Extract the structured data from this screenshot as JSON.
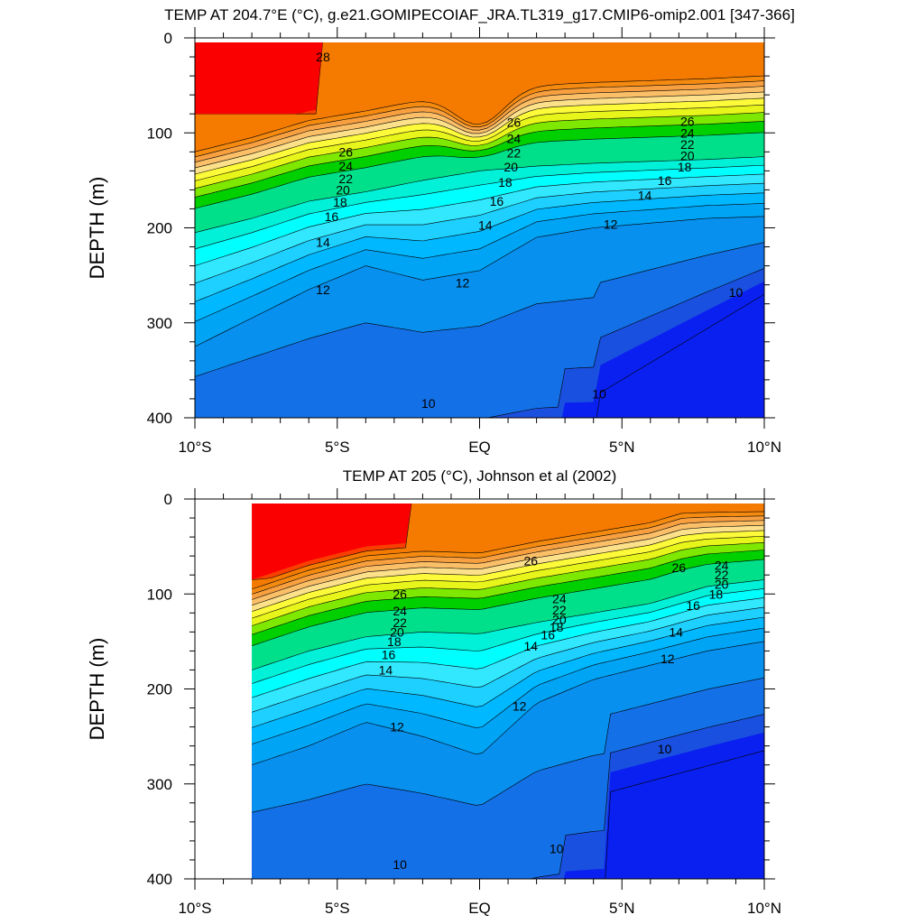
{
  "chart_data": [
    {
      "type": "heatmap",
      "title": "TEMP AT 204.7°E (°C), g.e21.GOMIPECOIAF_JRA.TL319_g17.CMIP6-omip2.001 [347-366]",
      "xlabel": "",
      "ylabel": "DEPTH (m)",
      "xlim": [
        -10,
        10
      ],
      "ylim": [
        400,
        0
      ],
      "x_ticks": [
        -10,
        -5,
        0,
        5,
        10
      ],
      "x_tick_labels": [
        "10°S",
        "5°S",
        "EQ",
        "5°N",
        "10°N"
      ],
      "y_ticks": [
        0,
        100,
        200,
        300,
        400
      ],
      "y_tick_labels": [
        "0",
        "100",
        "200",
        "300",
        "400"
      ],
      "x": [
        -10,
        -8,
        -6,
        -4,
        -2,
        0,
        2,
        4,
        6,
        8,
        10
      ],
      "d18_isotherm": [
        205,
        190,
        172,
        162,
        150,
        140,
        135,
        132,
        130,
        128,
        125
      ],
      "d12_isotherm": [
        325,
        295,
        265,
        240,
        255,
        245,
        210,
        200,
        195,
        190,
        188
      ],
      "contour_labels": [
        {
          "text": "28",
          "x": -5.5,
          "y": 20
        },
        {
          "text": "26",
          "x": -4.7,
          "y": 120
        },
        {
          "text": "24",
          "x": -4.7,
          "y": 135
        },
        {
          "text": "22",
          "x": -4.7,
          "y": 148
        },
        {
          "text": "20",
          "x": -4.8,
          "y": 160
        },
        {
          "text": "18",
          "x": -4.9,
          "y": 173
        },
        {
          "text": "16",
          "x": -5.2,
          "y": 188
        },
        {
          "text": "14",
          "x": -5.5,
          "y": 215
        },
        {
          "text": "12",
          "x": -5.5,
          "y": 265
        },
        {
          "text": "12",
          "x": -0.6,
          "y": 258
        },
        {
          "text": "14",
          "x": 0.2,
          "y": 197
        },
        {
          "text": "16",
          "x": 0.6,
          "y": 172
        },
        {
          "text": "18",
          "x": 0.9,
          "y": 152
        },
        {
          "text": "20",
          "x": 1.1,
          "y": 136
        },
        {
          "text": "22",
          "x": 1.2,
          "y": 121
        },
        {
          "text": "24",
          "x": 1.2,
          "y": 106
        },
        {
          "text": "26",
          "x": 1.2,
          "y": 89
        },
        {
          "text": "12",
          "x": 4.6,
          "y": 196
        },
        {
          "text": "14",
          "x": 5.8,
          "y": 166
        },
        {
          "text": "16",
          "x": 6.5,
          "y": 150
        },
        {
          "text": "18",
          "x": 7.2,
          "y": 136
        },
        {
          "text": "20",
          "x": 7.3,
          "y": 124
        },
        {
          "text": "22",
          "x": 7.3,
          "y": 112
        },
        {
          "text": "24",
          "x": 7.3,
          "y": 100
        },
        {
          "text": "26",
          "x": 7.3,
          "y": 88
        },
        {
          "text": "10",
          "x": 9.0,
          "y": 268
        },
        {
          "text": "10",
          "x": 4.2,
          "y": 375
        },
        {
          "text": "10",
          "x": -1.8,
          "y": 385
        }
      ]
    },
    {
      "type": "heatmap",
      "title": "TEMP AT 205 (°C), Johnson et al (2002)",
      "xlabel": "",
      "ylabel": "DEPTH (m)",
      "xlim": [
        -10,
        10
      ],
      "ylim": [
        400,
        0
      ],
      "data_xrange": [
        -8,
        10
      ],
      "x_ticks": [
        -10,
        -5,
        0,
        5,
        10
      ],
      "x_tick_labels": [
        "10°S",
        "5°S",
        "EQ",
        "5°N",
        "10°N"
      ],
      "y_ticks": [
        0,
        100,
        200,
        300,
        400
      ],
      "y_tick_labels": [
        "0",
        "100",
        "200",
        "300",
        "400"
      ],
      "x": [
        -8,
        -6,
        -4,
        -2,
        0,
        2,
        4,
        6,
        8,
        10
      ],
      "d18_isotherm": [
        180,
        160,
        145,
        140,
        142,
        130,
        120,
        110,
        92,
        85
      ],
      "d12_isotherm": [
        280,
        260,
        235,
        250,
        270,
        215,
        190,
        175,
        160,
        150
      ],
      "contour_labels": [
        {
          "text": "26",
          "x": -2.8,
          "y": 100
        },
        {
          "text": "24",
          "x": -2.8,
          "y": 118
        },
        {
          "text": "22",
          "x": -2.8,
          "y": 130
        },
        {
          "text": "20",
          "x": -2.9,
          "y": 140
        },
        {
          "text": "18",
          "x": -3.0,
          "y": 150
        },
        {
          "text": "16",
          "x": -3.2,
          "y": 164
        },
        {
          "text": "14",
          "x": -3.3,
          "y": 180
        },
        {
          "text": "12",
          "x": -2.9,
          "y": 240
        },
        {
          "text": "26",
          "x": 1.8,
          "y": 65
        },
        {
          "text": "24",
          "x": 2.8,
          "y": 105
        },
        {
          "text": "22",
          "x": 2.8,
          "y": 117
        },
        {
          "text": "20",
          "x": 2.8,
          "y": 127
        },
        {
          "text": "18",
          "x": 2.7,
          "y": 135
        },
        {
          "text": "16",
          "x": 2.4,
          "y": 143
        },
        {
          "text": "14",
          "x": 1.8,
          "y": 155
        },
        {
          "text": "12",
          "x": 1.4,
          "y": 218
        },
        {
          "text": "26",
          "x": 7.0,
          "y": 72
        },
        {
          "text": "24",
          "x": 8.5,
          "y": 70
        },
        {
          "text": "22",
          "x": 8.5,
          "y": 80
        },
        {
          "text": "20",
          "x": 8.5,
          "y": 90
        },
        {
          "text": "18",
          "x": 8.3,
          "y": 100
        },
        {
          "text": "16",
          "x": 7.5,
          "y": 112
        },
        {
          "text": "14",
          "x": 6.9,
          "y": 140
        },
        {
          "text": "12",
          "x": 6.6,
          "y": 168
        },
        {
          "text": "10",
          "x": 6.5,
          "y": 263
        },
        {
          "text": "10",
          "x": 2.7,
          "y": 368
        },
        {
          "text": "10",
          "x": -2.8,
          "y": 385
        }
      ]
    }
  ]
}
